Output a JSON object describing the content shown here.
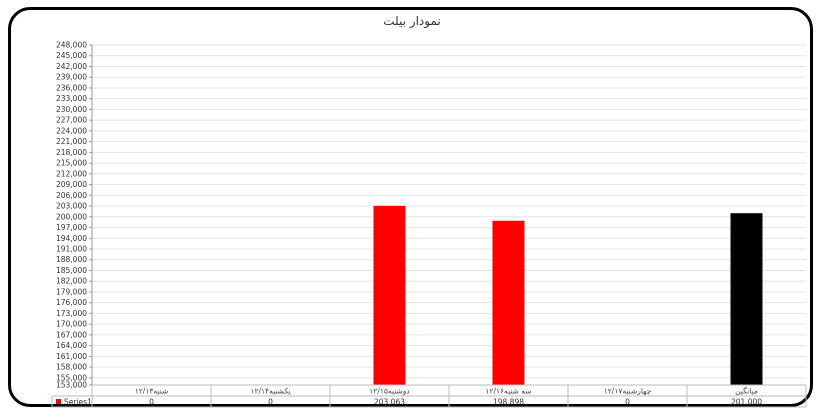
{
  "chart_data": {
    "type": "bar",
    "title": "نمودار بیلت",
    "categories": [
      "شنبه۱۲/۱۳",
      "یکشنبه۱۲/۱۴",
      "دوشنبه۱۲/۱۵",
      "سه شنبه۱۲/۱۶",
      "چهارشنبه۱۲/۱۷",
      "میانگین"
    ],
    "series": [
      {
        "name": "Series1",
        "values": [
          0,
          0,
          203063,
          198898,
          0,
          201000
        ],
        "value_labels": [
          "0",
          "0",
          "203,063",
          "198,898",
          "0",
          "201,000"
        ],
        "colors": [
          "#ff0000",
          "#ff0000",
          "#ff0000",
          "#ff0000",
          "#ff0000",
          "#000000"
        ]
      }
    ],
    "ylim": [
      153000,
      248000
    ],
    "yticks": [
      "248,000",
      "245,000",
      "242,000",
      "239,000",
      "236,000",
      "233,000",
      "230,000",
      "227,000",
      "224,000",
      "221,000",
      "218,000",
      "215,000",
      "212,000",
      "209,000",
      "206,000",
      "203,000",
      "200,000",
      "197,000",
      "194,000",
      "191,000",
      "188,000",
      "185,000",
      "182,000",
      "179,000",
      "176,000",
      "173,000",
      "170,000",
      "167,000",
      "164,000",
      "161,000",
      "158,000",
      "155,000",
      "153,000"
    ],
    "grid": true,
    "legend": "data-table"
  }
}
